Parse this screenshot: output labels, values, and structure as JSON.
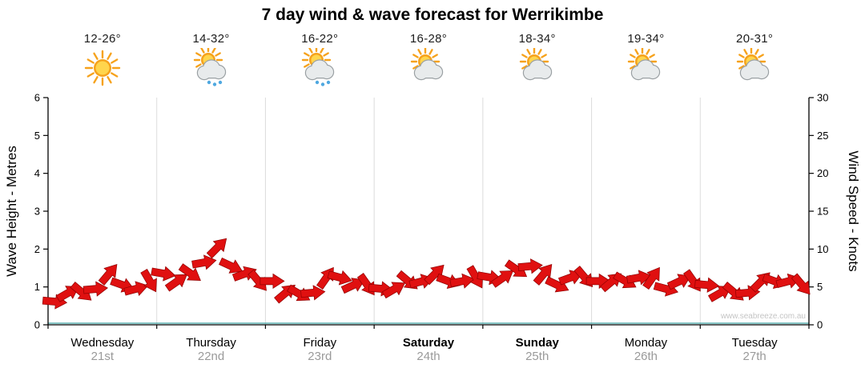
{
  "title": "7 day wind & wave forecast for Werrikimbe",
  "watermark": "www.seabreeze.com.au",
  "days": [
    {
      "name": "Wednesday",
      "date": "21st",
      "temp": "12-26°",
      "icon": "sunny",
      "weekend": false
    },
    {
      "name": "Thursday",
      "date": "22nd",
      "temp": "14-32°",
      "icon": "sun-showers",
      "weekend": false
    },
    {
      "name": "Friday",
      "date": "23rd",
      "temp": "16-22°",
      "icon": "sun-showers",
      "weekend": false
    },
    {
      "name": "Saturday",
      "date": "24th",
      "temp": "16-28°",
      "icon": "partly-cloudy",
      "weekend": true
    },
    {
      "name": "Sunday",
      "date": "25th",
      "temp": "18-34°",
      "icon": "partly-cloudy",
      "weekend": true
    },
    {
      "name": "Monday",
      "date": "26th",
      "temp": "19-34°",
      "icon": "partly-cloudy",
      "weekend": false
    },
    {
      "name": "Tuesday",
      "date": "27th",
      "temp": "20-31°",
      "icon": "partly-cloudy",
      "weekend": false
    }
  ],
  "chart_data": {
    "type": "wind-arrows",
    "title": "7 day wind & wave forecast for Werrikimbe",
    "left_axis": {
      "label": "Wave Height - Metres",
      "min": 0,
      "max": 6,
      "tick_step": 1
    },
    "right_axis": {
      "label": "Wind Speed - Knots",
      "min": 0,
      "max": 30,
      "tick_step": 5
    },
    "x_categories": [
      "Wednesday 21st",
      "Thursday 22nd",
      "Friday 23rd",
      "Saturday 24th",
      "Sunday 25th",
      "Monday 26th",
      "Tuesday 27th"
    ],
    "points_per_day": 8,
    "grid": "vertical-day-boundaries",
    "legend": "none",
    "arrow_color": "#e01010",
    "arrow_outline": "#8f0000",
    "zero_line_color": "#3aa0a0",
    "series": [
      {
        "name": "Wind speed (knots)",
        "values": [
          2.8,
          4.5,
          4.0,
          5.0,
          6.5,
          5.5,
          4.5,
          6.0,
          6.5,
          6.0,
          6.5,
          8.5,
          10.0,
          8.0,
          6.5,
          6.0,
          5.5,
          4.5,
          3.8,
          4.5,
          6.0,
          6.5,
          5.0,
          5.5,
          4.5,
          5.0,
          5.5,
          6.0,
          6.5,
          6.0,
          5.5,
          6.5,
          6.0,
          6.5,
          7.0,
          8.0,
          6.5,
          5.5,
          6.0,
          6.5,
          5.5,
          6.0,
          5.5,
          6.5,
          6.0,
          5.0,
          5.5,
          6.0,
          5.0,
          4.5,
          4.0,
          4.5,
          5.5,
          6.0,
          5.5,
          5.5
        ]
      },
      {
        "name": "Wind direction (deg)",
        "values": [
          95,
          60,
          130,
          85,
          40,
          110,
          75,
          150,
          100,
          55,
          125,
          80,
          45,
          115,
          70,
          140,
          90,
          50,
          120,
          85,
          35,
          105,
          65,
          145,
          95,
          60,
          130,
          75,
          45,
          110,
          80,
          150,
          100,
          55,
          125,
          85,
          40,
          115,
          70,
          140,
          90,
          50,
          120,
          80,
          35,
          105,
          65,
          145,
          95,
          60,
          130,
          85,
          45,
          110,
          75,
          140
        ]
      }
    ]
  }
}
